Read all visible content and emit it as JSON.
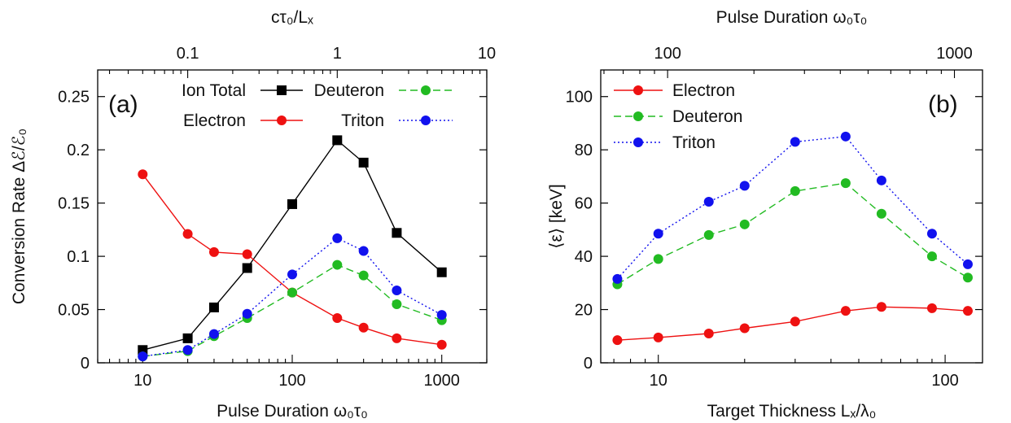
{
  "chart_data": [
    {
      "panel_label": "(a)",
      "type": "line",
      "xscale": "log",
      "xlabel": "Pulse Duration ω₀τ₀",
      "ylabel": "Conversion Rate Δℰ/ℰ₀",
      "top_xlabel": "cτ₀/Lₓ",
      "xlim": [
        5,
        2000
      ],
      "ylim": [
        0,
        0.275
      ],
      "yticks": [
        0,
        0.05,
        0.1,
        0.15,
        0.2,
        0.25
      ],
      "ytick_labels": [
        "0",
        "0.05",
        "0.1",
        "0.15",
        "0.2",
        "0.25"
      ],
      "xticks": [
        10,
        100,
        1000
      ],
      "xtick_labels": [
        "10",
        "100",
        "1000"
      ],
      "top_xticks": [
        0.1,
        1,
        10
      ],
      "top_xtick_labels": [
        "0.1",
        "1",
        "10"
      ],
      "legend": {
        "placement": "top",
        "columns": 2
      },
      "x": [
        10,
        20,
        30,
        50,
        100,
        200,
        300,
        500,
        1000
      ],
      "series": [
        {
          "name": "Ion Total",
          "color": "#000000",
          "marker": "square",
          "dash": "solid",
          "values": [
            0.012,
            0.023,
            0.052,
            0.089,
            0.149,
            0.209,
            0.188,
            0.122,
            0.085
          ]
        },
        {
          "name": "Electron",
          "color": "#ee1111",
          "marker": "circle",
          "dash": "solid",
          "values": [
            0.177,
            0.121,
            0.104,
            0.102,
            0.066,
            0.042,
            0.033,
            0.023,
            0.017
          ]
        },
        {
          "name": "Deuteron",
          "color": "#22bb22",
          "marker": "circle",
          "dash": "dashed",
          "values": [
            0.006,
            0.011,
            0.025,
            0.042,
            0.066,
            0.092,
            0.082,
            0.055,
            0.04
          ]
        },
        {
          "name": "Triton",
          "color": "#1111ee",
          "marker": "circle",
          "dash": "dotted",
          "values": [
            0.006,
            0.012,
            0.027,
            0.046,
            0.083,
            0.117,
            0.105,
            0.068,
            0.045
          ]
        }
      ]
    },
    {
      "panel_label": "(b)",
      "type": "line",
      "xscale": "log",
      "xlabel": "Target Thickness Lₓ/λ₀",
      "ylabel": "⟨ε⟩ [keV]",
      "top_xlabel": "Pulse Duration ω₀τ₀",
      "xlim": [
        6.3,
        135
      ],
      "ylim": [
        0,
        110
      ],
      "yticks": [
        0,
        20,
        40,
        60,
        80,
        100
      ],
      "ytick_labels": [
        "0",
        "20",
        "40",
        "60",
        "80",
        "100"
      ],
      "xticks": [
        10,
        100
      ],
      "xtick_labels": [
        "10",
        "100"
      ],
      "top_xticks": [
        100,
        1000
      ],
      "top_xtick_labels": [
        "100",
        "1000"
      ],
      "legend": {
        "placement": "top-left",
        "columns": 1
      },
      "x": [
        7.2,
        10,
        15,
        20,
        30,
        45,
        60,
        90,
        120
      ],
      "series": [
        {
          "name": "Electron",
          "color": "#ee1111",
          "marker": "circle",
          "dash": "solid",
          "values": [
            8.5,
            9.5,
            11,
            13,
            15.5,
            19.5,
            21,
            20.5,
            19.5
          ]
        },
        {
          "name": "Deuteron",
          "color": "#22bb22",
          "marker": "circle",
          "dash": "dashed",
          "values": [
            29.5,
            39,
            48,
            52,
            64.5,
            67.5,
            56,
            40,
            32
          ]
        },
        {
          "name": "Triton",
          "color": "#1111ee",
          "marker": "circle",
          "dash": "dotted",
          "values": [
            31.5,
            48.5,
            60.5,
            66.5,
            83,
            85,
            68.5,
            48.5,
            37
          ]
        }
      ]
    }
  ]
}
